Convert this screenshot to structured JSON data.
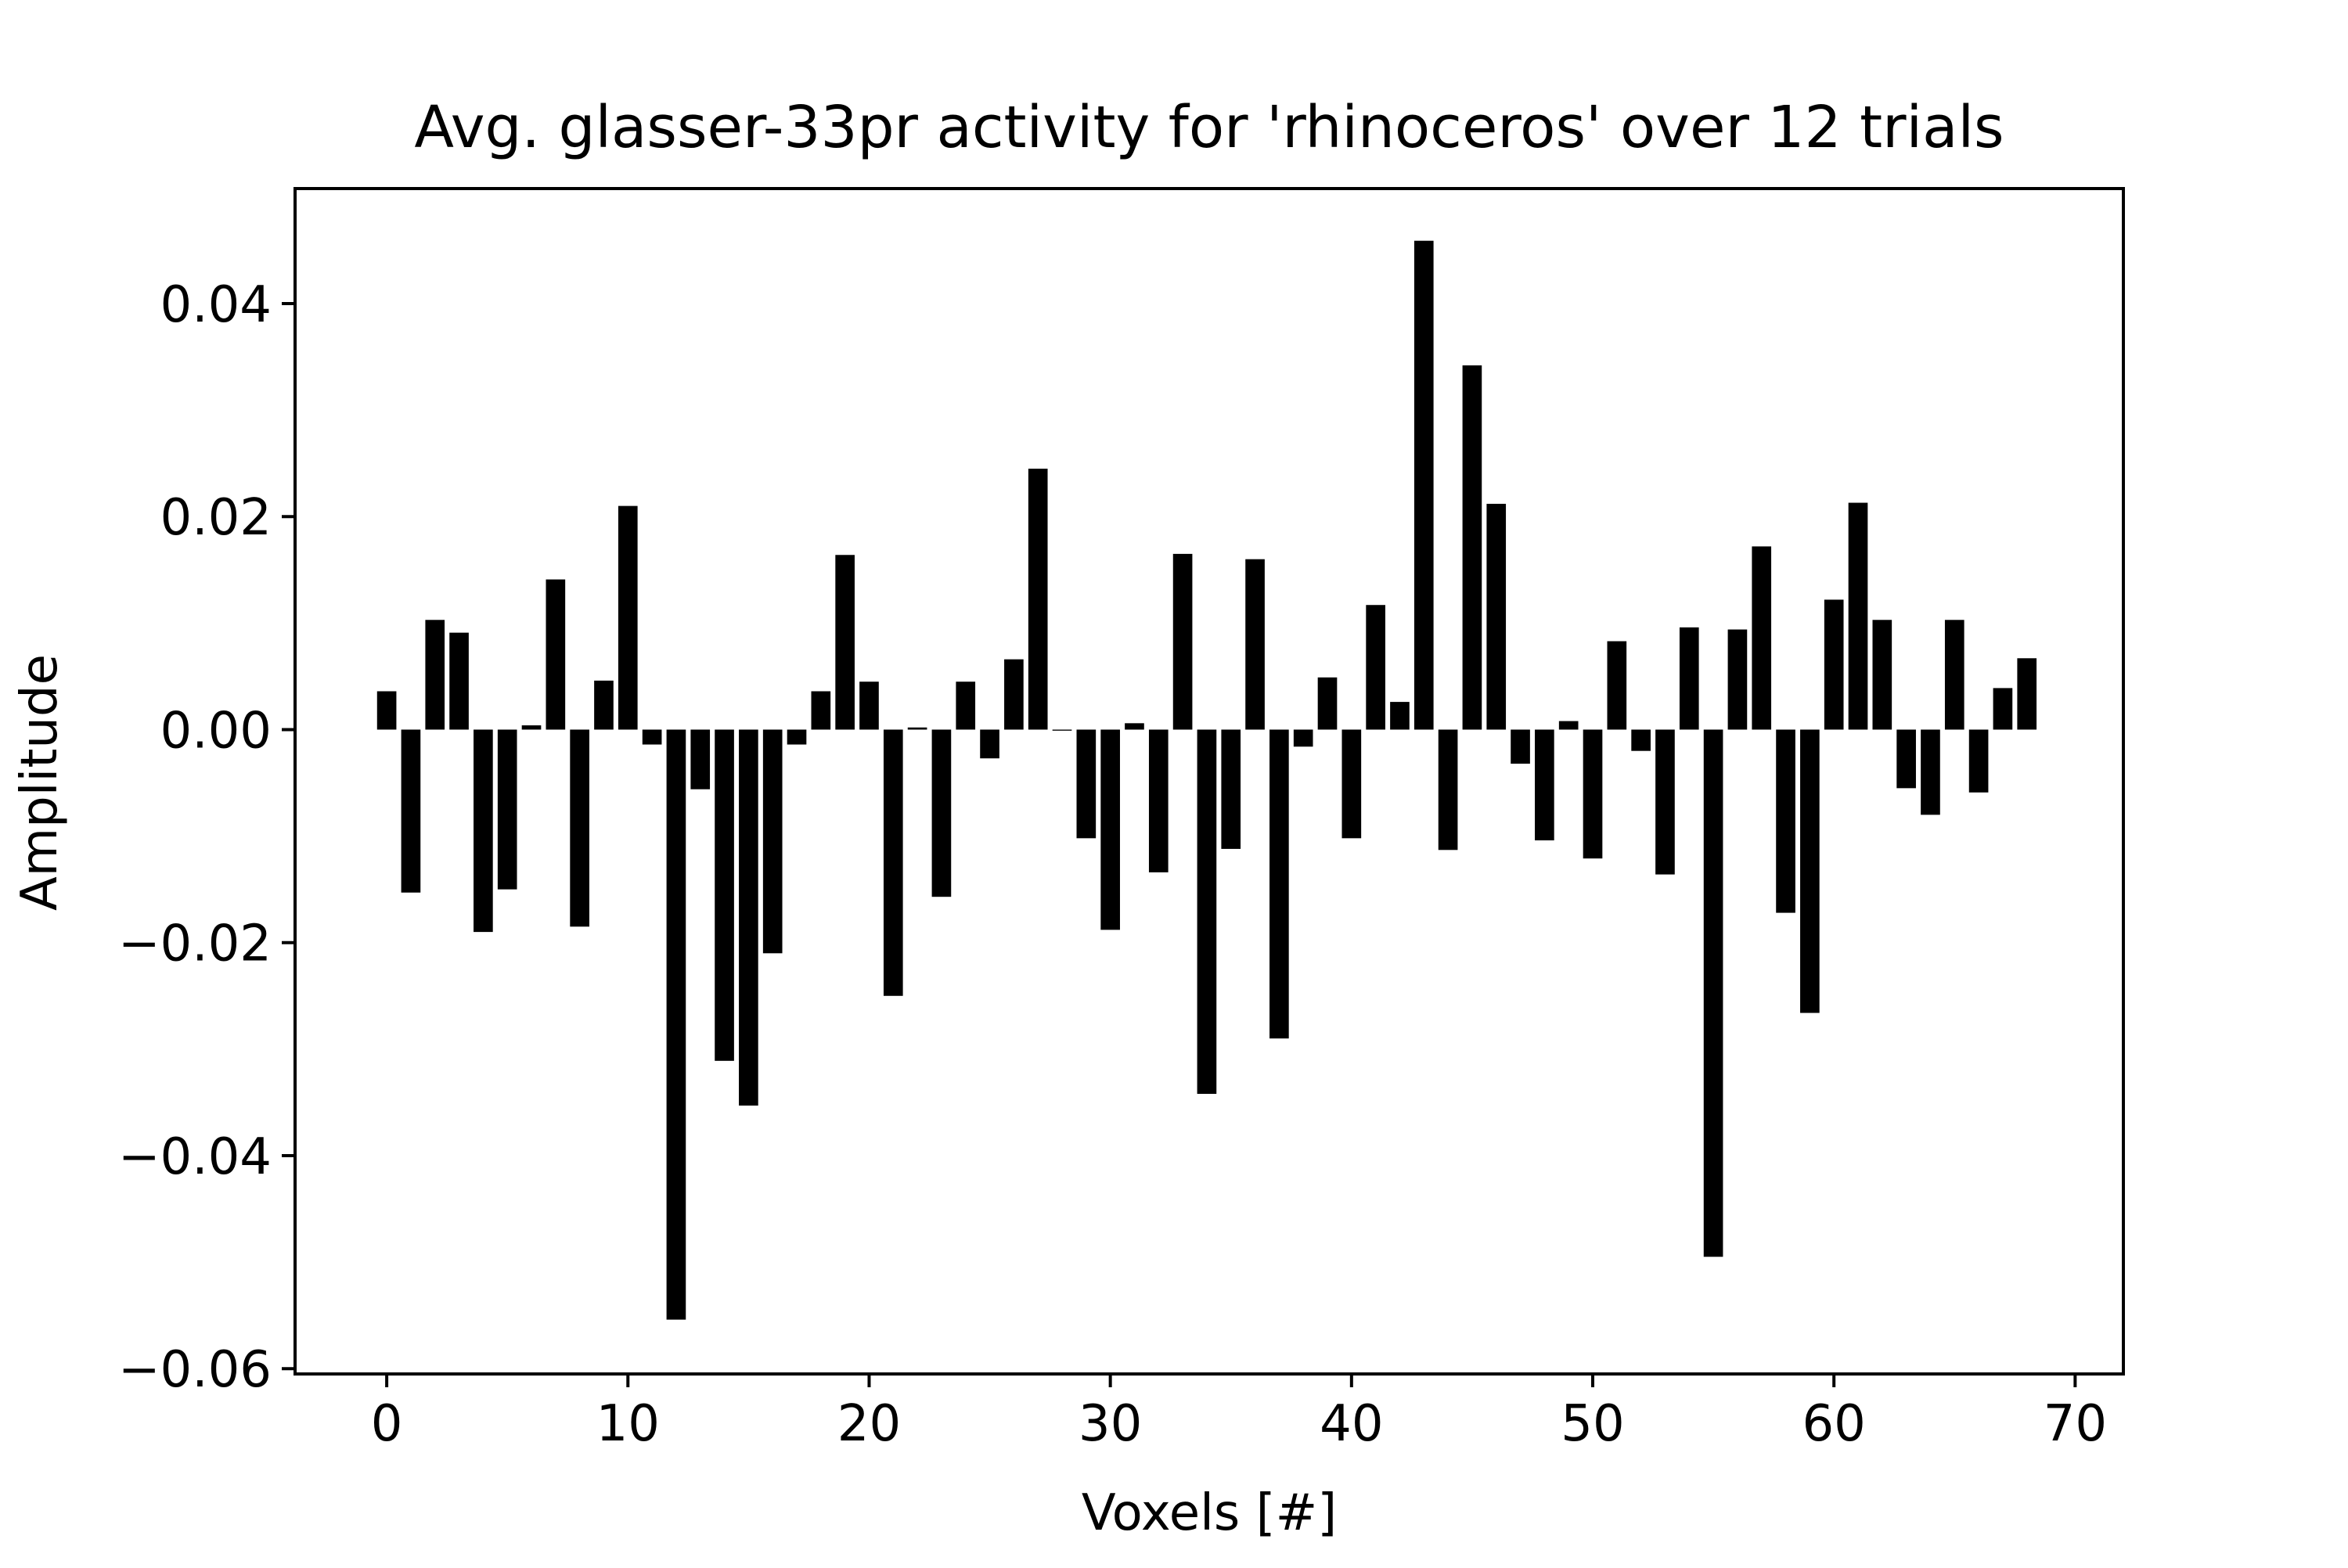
{
  "chart_data": {
    "type": "bar",
    "title": "Avg. glasser-33pr activity for 'rhinoceros' over 12 trials",
    "xlabel": "Voxels [#]",
    "ylabel": "Amplitude",
    "xlim": [
      -3.8,
      72
    ],
    "ylim": [
      -0.0605,
      0.0508
    ],
    "xticks": [
      0,
      10,
      20,
      30,
      40,
      50,
      60,
      70
    ],
    "xtick_labels": [
      "0",
      "10",
      "20",
      "30",
      "40",
      "50",
      "60",
      "70"
    ],
    "yticks": [
      0.04,
      0.02,
      0.0,
      -0.02,
      -0.04,
      -0.06
    ],
    "ytick_labels": [
      "0.04",
      "0.02",
      "0.00",
      "−0.02",
      "−0.04",
      "−0.06"
    ],
    "grid": false,
    "bar_color": "#000000",
    "x": [
      0,
      1,
      2,
      3,
      4,
      5,
      6,
      7,
      8,
      9,
      10,
      11,
      12,
      13,
      14,
      15,
      16,
      17,
      18,
      19,
      20,
      21,
      22,
      23,
      24,
      25,
      26,
      27,
      28,
      29,
      30,
      31,
      32,
      33,
      34,
      35,
      36,
      37,
      38,
      39,
      40,
      41,
      42,
      43,
      44,
      45,
      46,
      47,
      48,
      49,
      50,
      51,
      52,
      53,
      54,
      55,
      56,
      57,
      58,
      59,
      60,
      61,
      62,
      63,
      64,
      65,
      66,
      67,
      68
    ],
    "values": [
      0.0036,
      -0.0153,
      0.0103,
      0.0091,
      -0.019,
      -0.015,
      0.0004,
      0.0141,
      -0.0185,
      0.0046,
      0.021,
      -0.0014,
      -0.0554,
      -0.0056,
      -0.0311,
      -0.0353,
      -0.021,
      -0.0014,
      0.0036,
      0.0164,
      0.0045,
      -0.025,
      0.0002,
      -0.0157,
      0.0045,
      -0.0027,
      0.0066,
      0.0245,
      -0.0001,
      -0.0102,
      -0.0188,
      0.0006,
      -0.0134,
      0.0165,
      -0.0342,
      -0.0112,
      0.016,
      -0.029,
      -0.0016,
      0.0049,
      -0.0102,
      0.0117,
      0.0026,
      0.0459,
      -0.0113,
      0.0342,
      0.0212,
      -0.0032,
      -0.0104,
      0.0008,
      -0.0121,
      0.0083,
      -0.002,
      -0.0136,
      0.0096,
      -0.0495,
      0.0094,
      0.0172,
      -0.0172,
      -0.0266,
      0.0122,
      0.0213,
      0.0103,
      -0.0055,
      -0.008,
      0.0103,
      -0.0059,
      0.0039,
      0.0067
    ]
  }
}
